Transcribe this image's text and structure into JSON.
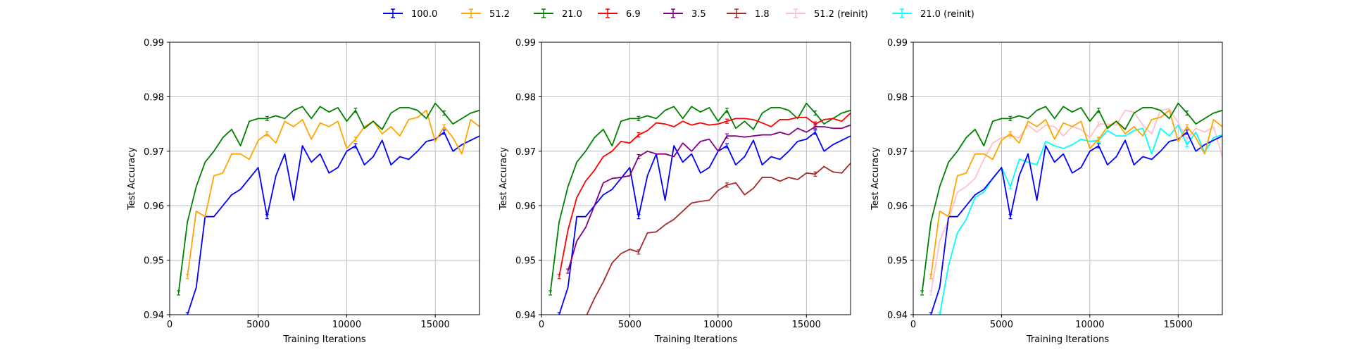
{
  "legend": {
    "entries": [
      {
        "name": "100.0",
        "color": "#0000ff"
      },
      {
        "name": "51.2",
        "color": "#ffa500"
      },
      {
        "name": "21.0",
        "color": "#008000"
      },
      {
        "name": "6.9",
        "color": "#ff0000"
      },
      {
        "name": "3.5",
        "color": "#800080"
      },
      {
        "name": "1.8",
        "color": "#a52a2a"
      },
      {
        "name": "51.2 (reinit)",
        "color": "#ffc0cb"
      },
      {
        "name": "21.0 (reinit)",
        "color": "#00ffff"
      }
    ]
  },
  "chart_data": [
    {
      "type": "line",
      "xlabel": "Training Iterations",
      "ylabel": "Test Accuracy",
      "xlim": [
        0,
        17500
      ],
      "ylim": [
        0.94,
        0.99
      ],
      "xticks": [
        0,
        5000,
        10000,
        15000
      ],
      "yticks": [
        0.94,
        0.95,
        0.96,
        0.97,
        0.98,
        0.99
      ],
      "grid": true,
      "x": [
        500,
        1000,
        1500,
        2000,
        2500,
        3000,
        3500,
        4000,
        4500,
        5000,
        5500,
        6000,
        6500,
        7000,
        7500,
        8000,
        8500,
        9000,
        9500,
        10000,
        10500,
        11000,
        11500,
        12000,
        12500,
        13000,
        13500,
        14000,
        14500,
        15000,
        15500,
        16000,
        16500,
        17000,
        17500
      ],
      "series": [
        {
          "name": "100.0",
          "color": "#0000ff",
          "values": [
            null,
            0.94,
            0.945,
            0.958,
            0.958,
            0.96,
            0.962,
            0.963,
            0.965,
            0.967,
            0.958,
            0.9655,
            0.9695,
            0.961,
            0.971,
            0.968,
            0.9695,
            0.966,
            0.967,
            0.97,
            0.971,
            0.9675,
            0.969,
            0.972,
            0.9675,
            0.969,
            0.9685,
            0.97,
            0.9718,
            0.9722,
            0.9735,
            0.97,
            0.9712,
            0.972,
            0.9728
          ]
        },
        {
          "name": "51.2",
          "color": "#ffa500",
          "values": [
            null,
            0.947,
            0.959,
            0.958,
            0.9655,
            0.966,
            0.9695,
            0.9695,
            0.9685,
            0.972,
            0.9732,
            0.9715,
            0.9755,
            0.9745,
            0.9758,
            0.9722,
            0.9752,
            0.9745,
            0.9755,
            0.9705,
            0.9722,
            0.9745,
            0.9755,
            0.9732,
            0.9745,
            0.9728,
            0.9758,
            0.9762,
            0.9775,
            0.9718,
            0.9745,
            0.9725,
            0.9695,
            0.9758,
            0.9745
          ]
        },
        {
          "name": "21.0",
          "color": "#008000",
          "values": [
            0.944,
            0.957,
            0.9635,
            0.968,
            0.97,
            0.9725,
            0.974,
            0.971,
            0.9755,
            0.976,
            0.976,
            0.9765,
            0.976,
            0.9775,
            0.9782,
            0.976,
            0.9782,
            0.9772,
            0.978,
            0.9755,
            0.9775,
            0.9742,
            0.9755,
            0.974,
            0.977,
            0.978,
            0.978,
            0.9775,
            0.976,
            0.9788,
            0.977,
            0.975,
            0.976,
            0.977,
            0.9775
          ]
        }
      ]
    },
    {
      "type": "line",
      "xlabel": "Training Iterations",
      "ylabel": "Test Accuracy",
      "xlim": [
        0,
        17500
      ],
      "ylim": [
        0.94,
        0.99
      ],
      "xticks": [
        0,
        5000,
        10000,
        15000
      ],
      "yticks": [
        0.94,
        0.95,
        0.96,
        0.97,
        0.98,
        0.99
      ],
      "grid": true,
      "x": [
        500,
        1000,
        1500,
        2000,
        2500,
        3000,
        3500,
        4000,
        4500,
        5000,
        5500,
        6000,
        6500,
        7000,
        7500,
        8000,
        8500,
        9000,
        9500,
        10000,
        10500,
        11000,
        11500,
        12000,
        12500,
        13000,
        13500,
        14000,
        14500,
        15000,
        15500,
        16000,
        16500,
        17000,
        17500
      ],
      "series": [
        {
          "name": "21.0",
          "color": "#008000",
          "values": [
            0.944,
            0.957,
            0.9635,
            0.968,
            0.97,
            0.9725,
            0.974,
            0.971,
            0.9755,
            0.976,
            0.976,
            0.9765,
            0.976,
            0.9775,
            0.9782,
            0.976,
            0.9782,
            0.9772,
            0.978,
            0.9755,
            0.9775,
            0.9742,
            0.9755,
            0.974,
            0.977,
            0.978,
            0.978,
            0.9775,
            0.976,
            0.9788,
            0.977,
            0.975,
            0.976,
            0.977,
            0.9775
          ]
        },
        {
          "name": "6.9",
          "color": "#ff0000",
          "values": [
            null,
            0.947,
            0.9555,
            0.9615,
            0.9645,
            0.9665,
            0.969,
            0.97,
            0.9718,
            0.9715,
            0.973,
            0.9738,
            0.9752,
            0.975,
            0.9745,
            0.9755,
            0.9748,
            0.9752,
            0.9748,
            0.975,
            0.9755,
            0.976,
            0.976,
            0.9758,
            0.9752,
            0.9745,
            0.9758,
            0.9758,
            0.9762,
            0.9762,
            0.975,
            0.9758,
            0.976,
            0.9755,
            0.977
          ]
        },
        {
          "name": "100.0",
          "color": "#0000ff",
          "values": [
            null,
            0.94,
            0.945,
            0.958,
            0.958,
            0.96,
            0.962,
            0.963,
            0.965,
            0.967,
            0.958,
            0.9655,
            0.9695,
            0.961,
            0.971,
            0.968,
            0.9695,
            0.966,
            0.967,
            0.97,
            0.971,
            0.9675,
            0.969,
            0.972,
            0.9675,
            0.969,
            0.9685,
            0.97,
            0.9718,
            0.9722,
            0.9735,
            0.97,
            0.9712,
            0.972,
            0.9728
          ]
        },
        {
          "name": "3.5",
          "color": "#800080",
          "values": [
            null,
            null,
            0.948,
            0.9535,
            0.956,
            0.96,
            0.9642,
            0.965,
            0.9652,
            0.9655,
            0.969,
            0.97,
            0.9695,
            0.9695,
            0.969,
            0.9715,
            0.97,
            0.9718,
            0.9722,
            0.97,
            0.9728,
            0.9728,
            0.9726,
            0.9728,
            0.973,
            0.973,
            0.9735,
            0.973,
            0.9742,
            0.9735,
            0.9745,
            0.9745,
            0.9742,
            0.9742,
            0.9748
          ]
        },
        {
          "name": "1.8",
          "color": "#a52a2a",
          "values": [
            null,
            null,
            null,
            null,
            0.9395,
            0.943,
            0.946,
            0.9495,
            0.9512,
            0.952,
            0.9515,
            0.955,
            0.9552,
            0.9565,
            0.9575,
            0.959,
            0.9605,
            0.9608,
            0.961,
            0.9628,
            0.9638,
            0.9642,
            0.962,
            0.9632,
            0.9652,
            0.9652,
            0.9645,
            0.9652,
            0.9648,
            0.966,
            0.9658,
            0.9672,
            0.9662,
            0.966,
            0.9678
          ]
        }
      ]
    },
    {
      "type": "line",
      "xlabel": "Training Iterations",
      "ylabel": "Test Accuracy",
      "xlim": [
        0,
        17500
      ],
      "ylim": [
        0.94,
        0.99
      ],
      "xticks": [
        0,
        5000,
        10000,
        15000
      ],
      "yticks": [
        0.94,
        0.95,
        0.96,
        0.97,
        0.98,
        0.99
      ],
      "grid": true,
      "x": [
        500,
        1000,
        1500,
        2000,
        2500,
        3000,
        3500,
        4000,
        4500,
        5000,
        5500,
        6000,
        6500,
        7000,
        7500,
        8000,
        8500,
        9000,
        9500,
        10000,
        10500,
        11000,
        11500,
        12000,
        12500,
        13000,
        13500,
        14000,
        14500,
        15000,
        15500,
        16000,
        16500,
        17000,
        17500
      ],
      "series": [
        {
          "name": "51.2 (reinit)",
          "color": "#ffc0cb",
          "values": [
            null,
            0.944,
            0.9535,
            0.9575,
            0.9625,
            0.9635,
            0.965,
            0.9685,
            0.9715,
            0.9725,
            0.9728,
            0.9725,
            0.9748,
            0.9735,
            0.9748,
            0.9745,
            0.9728,
            0.9745,
            0.974,
            0.9725,
            0.975,
            0.975,
            0.9748,
            0.9775,
            0.9772,
            0.9748,
            0.9732,
            0.9775,
            0.9778,
            0.9752,
            0.9722,
            0.9742,
            0.9735,
            0.9745,
            0.969
          ]
        },
        {
          "name": "21.0 (reinit)",
          "color": "#00ffff",
          "values": [
            null,
            null,
            0.94,
            0.949,
            0.955,
            0.9575,
            0.9615,
            0.9625,
            0.965,
            0.967,
            0.9635,
            0.9685,
            0.968,
            0.9675,
            0.9718,
            0.971,
            0.9705,
            0.9712,
            0.9722,
            0.9718,
            0.972,
            0.9738,
            0.9728,
            0.9728,
            0.9738,
            0.9742,
            0.9695,
            0.9742,
            0.9728,
            0.9748,
            0.9712,
            0.9735,
            0.9698,
            0.9725,
            0.973
          ]
        },
        {
          "name": "100.0",
          "color": "#0000ff",
          "values": [
            null,
            0.94,
            0.945,
            0.958,
            0.958,
            0.96,
            0.962,
            0.963,
            0.965,
            0.967,
            0.958,
            0.9655,
            0.9695,
            0.961,
            0.971,
            0.968,
            0.9695,
            0.966,
            0.967,
            0.97,
            0.971,
            0.9675,
            0.969,
            0.972,
            0.9675,
            0.969,
            0.9685,
            0.97,
            0.9718,
            0.9722,
            0.9735,
            0.97,
            0.9712,
            0.972,
            0.9728
          ]
        },
        {
          "name": "51.2",
          "color": "#ffa500",
          "values": [
            null,
            0.947,
            0.959,
            0.958,
            0.9655,
            0.966,
            0.9695,
            0.9695,
            0.9685,
            0.972,
            0.9732,
            0.9715,
            0.9755,
            0.9745,
            0.9758,
            0.9722,
            0.9752,
            0.9745,
            0.9755,
            0.9705,
            0.9722,
            0.9745,
            0.9755,
            0.9732,
            0.9745,
            0.9728,
            0.9758,
            0.9762,
            0.9775,
            0.9718,
            0.9745,
            0.9725,
            0.9695,
            0.9758,
            0.9745
          ]
        },
        {
          "name": "21.0",
          "color": "#008000",
          "values": [
            0.944,
            0.957,
            0.9635,
            0.968,
            0.97,
            0.9725,
            0.974,
            0.971,
            0.9755,
            0.976,
            0.976,
            0.9765,
            0.976,
            0.9775,
            0.9782,
            0.976,
            0.9782,
            0.9772,
            0.978,
            0.9755,
            0.9775,
            0.9742,
            0.9755,
            0.974,
            0.977,
            0.978,
            0.978,
            0.9775,
            0.976,
            0.9788,
            0.977,
            0.975,
            0.976,
            0.977,
            0.9775
          ]
        }
      ]
    }
  ]
}
